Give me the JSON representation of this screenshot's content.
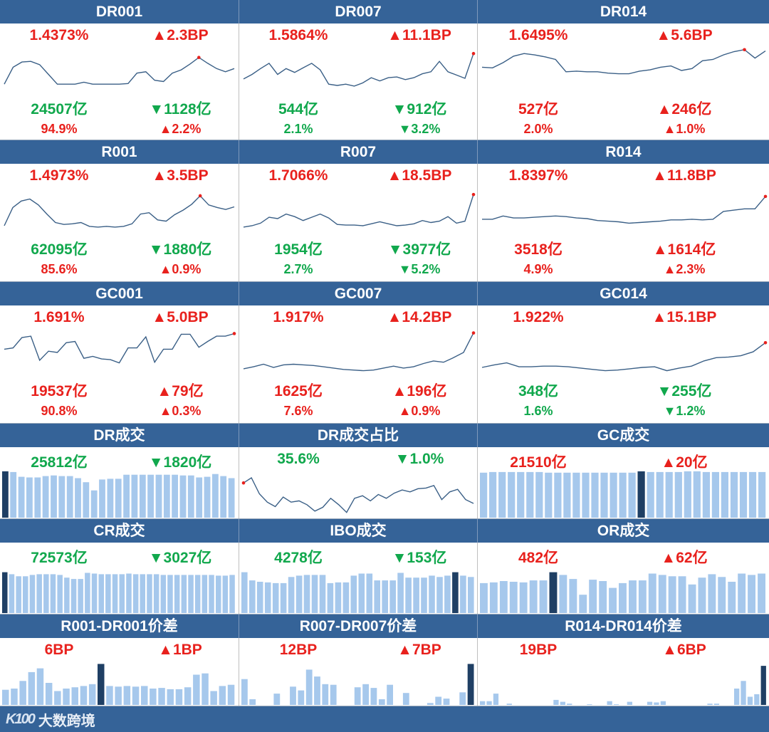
{
  "colors": {
    "header_bg": "#356398",
    "up": "#e8211d",
    "down": "#11a84d",
    "line": "#3a5f86",
    "bar": "#a6c8ec",
    "bar_highlight": "#1f3f64",
    "marker": "#e8211d"
  },
  "sections": [
    {
      "cells": [
        {
          "title": "DR001",
          "rate": "1.4373%",
          "rate_chg": "▲2.3BP",
          "rate_dir": "up",
          "vol": "24507亿",
          "vol_chg": "▼1128亿",
          "vol_dir": "down",
          "share": "94.9%",
          "share_chg": "▲2.2%",
          "share_color": "red",
          "share_chg_dir": "up",
          "chart_data": {
            "type": "line",
            "values": [
              14,
              40,
              48,
              49,
              44,
              29,
              14,
              14,
              14,
              17,
              14,
              14,
              14,
              14,
              15,
              31,
              33,
              20,
              18,
              31,
              36,
              45,
              55,
              46,
              38,
              33,
              38
            ],
            "marker": "max"
          }
        },
        {
          "title": "DR007",
          "rate": "1.5864%",
          "rate_chg": "▲11.1BP",
          "rate_dir": "up",
          "vol": "544亿",
          "vol_chg": "▼912亿",
          "vol_dir": "down",
          "share": "2.1%",
          "share_chg": "▼3.2%",
          "share_color": "green",
          "share_chg_dir": "down",
          "chart_data": {
            "type": "line",
            "values": [
              22,
              29,
              38,
              46,
              29,
              38,
              32,
              39,
              46,
              36,
              14,
              12,
              14,
              11,
              16,
              24,
              19,
              24,
              25,
              21,
              24,
              30,
              33,
              49,
              33,
              28,
              23,
              61
            ],
            "marker": "last"
          }
        },
        {
          "title": "DR014",
          "rate": "1.6495%",
          "rate_chg": "▲5.6BP",
          "rate_dir": "up",
          "vol": "527亿",
          "vol_chg": "▲246亿",
          "vol_dir": "up",
          "share": "2.0%",
          "share_chg": "▲1.0%",
          "share_color": "red",
          "share_chg_dir": "up",
          "chart_data": {
            "type": "line",
            "values": [
              40,
              39,
              47,
              57,
              61,
              59,
              56,
              52,
              33,
              34,
              33,
              33,
              31,
              30,
              30,
              34,
              36,
              40,
              42,
              35,
              38,
              50,
              52,
              59,
              64,
              67,
              54,
              65
            ],
            "marker": "max"
          }
        }
      ]
    },
    {
      "cells": [
        {
          "title": "R001",
          "rate": "1.4973%",
          "rate_chg": "▲3.5BP",
          "rate_dir": "up",
          "vol": "62095亿",
          "vol_chg": "▼1880亿",
          "vol_dir": "down",
          "share": "85.6%",
          "share_chg": "▲0.9%",
          "share_color": "red",
          "share_chg_dir": "up",
          "chart_data": {
            "type": "line",
            "values": [
              12,
              40,
              50,
              53,
              44,
              30,
              17,
              14,
              15,
              17,
              11,
              10,
              11,
              10,
              11,
              15,
              30,
              32,
              21,
              19,
              29,
              36,
              45,
              58,
              44,
              40,
              37,
              41
            ],
            "marker": "max"
          }
        },
        {
          "title": "R007",
          "rate": "1.7066%",
          "rate_chg": "▲18.5BP",
          "rate_dir": "up",
          "vol": "1954亿",
          "vol_chg": "▼3977亿",
          "vol_dir": "down",
          "share": "2.7%",
          "share_chg": "▼5.2%",
          "share_color": "green",
          "share_chg_dir": "down",
          "chart_data": {
            "type": "line",
            "values": [
              10,
              12,
              16,
              25,
              23,
              30,
              26,
              20,
              25,
              30,
              24,
              14,
              13,
              13,
              12,
              15,
              18,
              15,
              12,
              13,
              15,
              20,
              17,
              19,
              26,
              16,
              19,
              60
            ],
            "marker": "last"
          }
        },
        {
          "title": "R014",
          "rate": "1.8397%",
          "rate_chg": "▲11.8BP",
          "rate_dir": "up",
          "vol": "3518亿",
          "vol_chg": "▲1614亿",
          "vol_dir": "up",
          "share": "4.9%",
          "share_chg": "▲2.3%",
          "share_color": "red",
          "share_chg_dir": "up",
          "chart_data": {
            "type": "line",
            "values": [
              22,
              22,
              27,
              24,
              24,
              25,
              26,
              27,
              26,
              24,
              23,
              20,
              19,
              18,
              16,
              17,
              18,
              19,
              21,
              21,
              22,
              21,
              22,
              34,
              36,
              38,
              38,
              57
            ],
            "marker": "last"
          }
        }
      ]
    },
    {
      "cells": [
        {
          "title": "GC001",
          "rate": "1.691%",
          "rate_chg": "▲5.0BP",
          "rate_dir": "up",
          "vol": "19537亿",
          "vol_chg": "▲79亿",
          "vol_dir": "up",
          "share": "90.8%",
          "share_chg": "▲0.3%",
          "share_color": "red",
          "share_chg_dir": "up",
          "chart_data": {
            "type": "line",
            "values": [
              40,
              42,
              58,
              60,
              23,
              37,
              35,
              50,
              52,
              26,
              29,
              25,
              24,
              19,
              42,
              42,
              59,
              20,
              40,
              40,
              63,
              63,
              43,
              52,
              60,
              60,
              64
            ],
            "marker": "last"
          }
        },
        {
          "title": "GC007",
          "rate": "1.917%",
          "rate_chg": "▲14.2BP",
          "rate_dir": "up",
          "vol": "1625亿",
          "vol_chg": "▲196亿",
          "vol_dir": "up",
          "share": "7.6%",
          "share_chg": "▲0.9%",
          "share_color": "red",
          "share_chg_dir": "up",
          "chart_data": {
            "type": "line",
            "values": [
              10,
              13,
              17,
              12,
              16,
              17,
              16,
              15,
              13,
              11,
              9,
              8,
              7,
              8,
              11,
              14,
              11,
              13,
              18,
              22,
              20,
              27,
              35,
              65
            ],
            "marker": "last"
          }
        },
        {
          "title": "GC014",
          "rate": "1.922%",
          "rate_chg": "▲15.1BP",
          "rate_dir": "up",
          "vol": "348亿",
          "vol_chg": "▼255亿",
          "vol_dir": "down",
          "share": "1.6%",
          "share_chg": "▼1.2%",
          "share_color": "green",
          "share_chg_dir": "down",
          "chart_data": {
            "type": "line",
            "values": [
              12,
              16,
              19,
              13,
              13,
              14,
              14,
              13,
              11,
              9,
              7,
              8,
              10,
              12,
              13,
              7,
              11,
              14,
              22,
              27,
              28,
              30,
              36,
              50
            ],
            "marker": "last"
          }
        }
      ]
    },
    {
      "cells": [
        {
          "title": "DR成交",
          "rate": "25812亿",
          "rate_chg": "▼1820亿",
          "rate_dir": "down",
          "chart_data": {
            "type": "bar",
            "values": [
              68,
              67,
              60,
              59,
              59,
              61,
              62,
              61,
              61,
              58,
              52,
              40,
              56,
              57,
              57,
              63,
              63,
              63,
              63,
              63,
              63,
              63,
              62,
              62,
              59,
              60,
              64,
              61,
              58
            ],
            "highlight": [
              0
            ]
          }
        },
        {
          "title": "DR成交占比",
          "rate": "35.6%",
          "rate_chg": "▼1.0%",
          "rate_dir": "down",
          "chart_data": {
            "type": "line",
            "values": [
              52,
              60,
              35,
              22,
              15,
              30,
              22,
              24,
              18,
              8,
              14,
              28,
              18,
              6,
              28,
              32,
              24,
              34,
              28,
              36,
              41,
              38,
              43,
              44,
              48,
              26,
              38,
              42,
              26,
              20
            ],
            "marker": "first"
          }
        },
        {
          "title": "GC成交",
          "rate": "21510亿",
          "rate_chg": "▲20亿",
          "rate_dir": "up",
          "chart_data": {
            "type": "bar",
            "values": [
              66,
              67,
              67,
              67,
              67,
              67,
              67,
              66,
              66,
              66,
              66,
              66,
              66,
              66,
              66,
              66,
              66,
              68,
              67,
              67,
              67,
              67,
              68,
              68,
              67,
              67,
              67,
              67,
              67,
              67,
              67
            ],
            "highlight": [
              17
            ]
          }
        }
      ]
    },
    {
      "cells": [
        {
          "title": "CR成交",
          "rate": "72573亿",
          "rate_chg": "▼3027亿",
          "rate_dir": "down",
          "chart_data": {
            "type": "bar",
            "values": [
              60,
              57,
              54,
              54,
              56,
              57,
              57,
              57,
              56,
              52,
              50,
              50,
              59,
              58,
              57,
              57,
              57,
              57,
              58,
              57,
              57,
              57,
              57,
              56,
              56,
              56,
              56,
              56,
              56,
              56,
              56,
              55,
              55,
              56
            ],
            "highlight": [
              0
            ]
          }
        },
        {
          "title": "IBO成交",
          "rate": "4278亿",
          "rate_chg": "▼153亿",
          "rate_dir": "down",
          "chart_data": {
            "type": "bar",
            "values": [
              60,
              48,
              46,
              45,
              44,
              44,
              53,
              55,
              56,
              56,
              56,
              44,
              45,
              45,
              55,
              58,
              58,
              48,
              48,
              48,
              59,
              52,
              52,
              52,
              55,
              53,
              55,
              60,
              55,
              53
            ],
            "highlight": [
              27
            ]
          }
        },
        {
          "title": "OR成交",
          "rate": "482亿",
          "rate_chg": "▲62亿",
          "rate_dir": "up",
          "chart_data": {
            "type": "bar",
            "values": [
              44,
              45,
              47,
              46,
              45,
              48,
              48,
              60,
              56,
              50,
              27,
              49,
              47,
              37,
              44,
              48,
              48,
              58,
              56,
              54,
              54,
              42,
              52,
              57,
              53,
              46,
              58,
              56,
              58
            ],
            "highlight": [
              7
            ]
          }
        }
      ]
    },
    {
      "cells": [
        {
          "title": "R001-DR001价差",
          "rate": "6BP",
          "rate_chg": "▲1BP",
          "rate_dir": "up",
          "chart_data": {
            "type": "bar",
            "values": [
              24,
              26,
              38,
              52,
              58,
              35,
              22,
              26,
              28,
              30,
              33,
              65,
              30,
              29,
              30,
              29,
              30,
              26,
              27,
              25,
              25,
              28,
              48,
              50,
              22,
              30,
              32
            ],
            "highlight": [
              11
            ]
          }
        },
        {
          "title": "R007-DR007价差",
          "rate": "12BP",
          "rate_chg": "▲7BP",
          "rate_dir": "up",
          "chart_data": {
            "type": "bar",
            "values": [
              41,
              9,
              0,
              0,
              18,
              0,
              29,
              23,
              56,
              45,
              33,
              32,
              0,
              0,
              28,
              33,
              27,
              9,
              32,
              0,
              19,
              0,
              0,
              3,
              13,
              10,
              0,
              20,
              65
            ],
            "highlight": [
              28
            ]
          }
        },
        {
          "title": "R014-DR014价差",
          "rate": "19BP",
          "rate_chg": "▲6BP",
          "rate_dir": "up",
          "chart_data": {
            "type": "bar",
            "values": [
              6,
              6,
              18,
              0,
              2,
              0,
              0,
              0,
              0,
              0,
              0,
              8,
              5,
              2,
              0,
              0,
              1,
              0,
              0,
              6,
              1,
              0,
              5,
              0,
              0,
              5,
              4,
              6,
              0,
              0,
              0,
              0,
              0,
              0,
              2,
              2,
              0,
              0,
              26,
              38,
              13,
              17,
              62
            ],
            "highlight": [
              42
            ]
          }
        }
      ]
    }
  ],
  "footer": {
    "logo_mark": "K100",
    "logo_text": "大数跨境"
  }
}
